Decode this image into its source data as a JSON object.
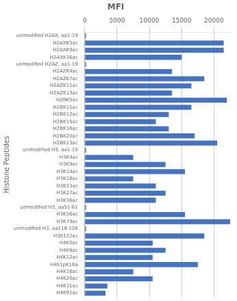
{
  "chart_data": {
    "type": "bar",
    "orientation": "horizontal",
    "title": "MFI",
    "ylabel": "Histone Peptides",
    "categories": [
      "unmodified H2AX, aa1-19",
      "H2AXK5ac",
      "H2AXK9ac",
      "H2AXK36ac",
      "unmodified H2AZ, aa1-19",
      "H2AZK4ac",
      "H2AZK7ac",
      "H2AZK11ac",
      "H2AZK13ac",
      "H2BK5ac",
      "H2BK11ac",
      "H2BK12ac",
      "H2BK15ac",
      "H2BK16ac",
      "H2BK20ac",
      "H2BK23ac",
      "unmodified H3, aa1-19",
      "H3K4ac",
      "H3K9ac",
      "H3K14ac",
      "H3K18ac",
      "H3K23ac",
      "H3K27ac",
      "H3K36ac",
      "unmodified H3, aa51-61",
      "H3K56ac",
      "H3K79ac",
      "unmodified H3, aa118-126",
      "H3K122ac",
      "H4K5ac",
      "H4K8ac",
      "H4K12ac",
      "H4S1pK16a",
      "H4K16ac",
      "H4K20ac",
      "H4K31ac",
      "H4K91ac"
    ],
    "values": [
      200,
      21500,
      21500,
      15000,
      200,
      13500,
      18500,
      16500,
      13500,
      22000,
      16500,
      13000,
      11000,
      13000,
      17000,
      20500,
      200,
      7500,
      12500,
      15500,
      7500,
      11000,
      12500,
      11000,
      200,
      15500,
      22500,
      200,
      18500,
      10500,
      12500,
      10500,
      17500,
      7500,
      10500,
      3500,
      3200
    ],
    "color": "#4472C4",
    "xlim": [
      0,
      22500
    ],
    "xticks": [
      0,
      5000,
      10000,
      15000,
      20000
    ],
    "grid": true
  }
}
